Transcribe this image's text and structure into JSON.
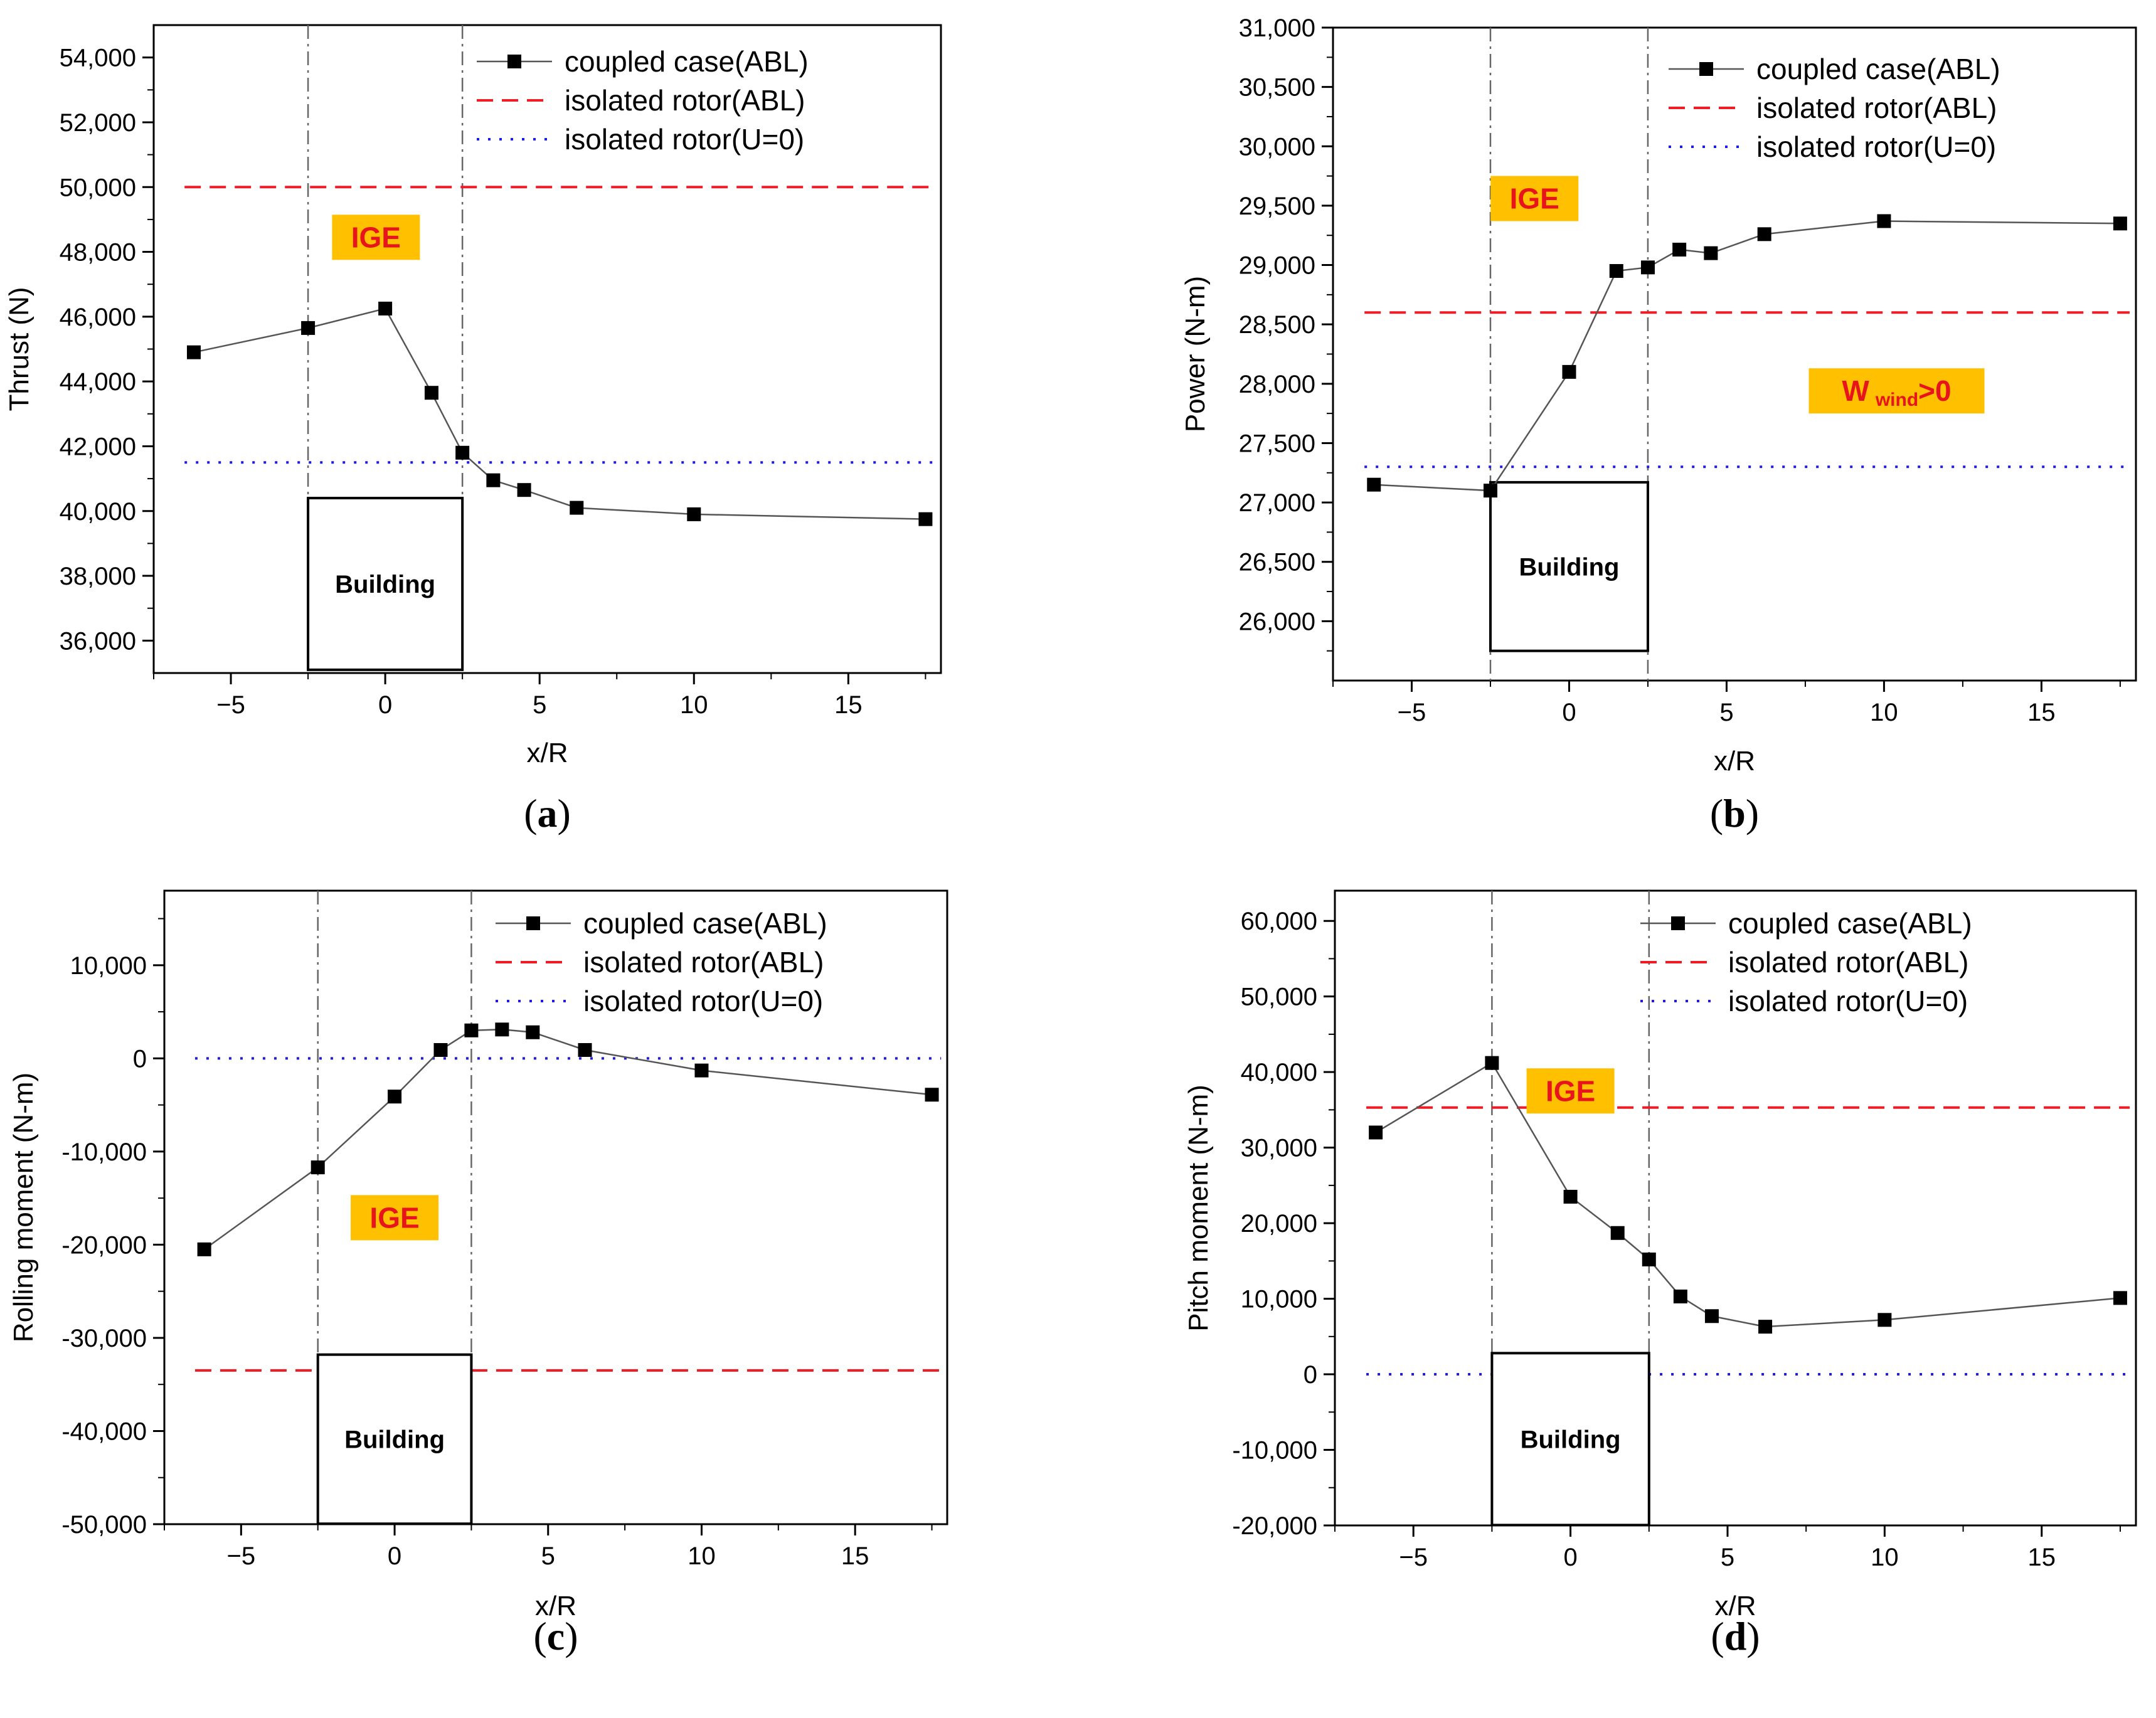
{
  "chart_data": [
    {
      "type": "line",
      "panel": "(a)",
      "panel_letter": "a",
      "xlabel": "x/R",
      "ylabel": "Thrust (N)",
      "xlim": [
        -7.5,
        18
      ],
      "ylim": [
        35000,
        55000
      ],
      "xticks": [
        -5,
        0,
        5,
        10,
        15
      ],
      "xtick_labels": [
        "−5",
        "0",
        "5",
        "10",
        "15"
      ],
      "yticks": [
        36000,
        38000,
        40000,
        42000,
        44000,
        46000,
        48000,
        50000,
        52000,
        54000
      ],
      "ytick_labels": [
        "36,000",
        "38,000",
        "40,000",
        "42,000",
        "44,000",
        "46,000",
        "48,000",
        "50,000",
        "52,000",
        "54,000"
      ],
      "series": [
        {
          "name": "coupled case(ABL)",
          "style": "line-square",
          "color": "#555555",
          "x": [
            -6.2,
            -2.5,
            0,
            1.5,
            2.5,
            3.5,
            4.5,
            6.2,
            10,
            17.5
          ],
          "y": [
            44900,
            45650,
            46250,
            43650,
            41800,
            40950,
            40650,
            40100,
            39900,
            39750
          ]
        },
        {
          "name": "isolated rotor(ABL)",
          "style": "dashed",
          "color": "#ee1c25",
          "y_const": 50000,
          "x_range": [
            -6.5,
            17.8
          ]
        },
        {
          "name": "isolated rotor(U=0)",
          "style": "dotted",
          "color": "#1c1ce6",
          "y_const": 41500,
          "x_range": [
            -6.5,
            17.8
          ]
        }
      ],
      "vlines": [
        -2.5,
        2.5
      ],
      "building": {
        "label": "Building",
        "x": [
          -2.5,
          2.5
        ],
        "y": [
          35100,
          40400
        ]
      },
      "badges": [
        {
          "text": "IGE",
          "x": -0.3,
          "y": 48450
        }
      ]
    },
    {
      "type": "line",
      "panel": "(b)",
      "panel_letter": "b",
      "xlabel": "x/R",
      "ylabel": "Power (N-m)",
      "xlim": [
        -7.5,
        18
      ],
      "ylim": [
        25500,
        31000
      ],
      "xticks": [
        -5,
        0,
        5,
        10,
        15
      ],
      "xtick_labels": [
        "−5",
        "0",
        "5",
        "10",
        "15"
      ],
      "yticks": [
        26000,
        26500,
        27000,
        27500,
        28000,
        28500,
        29000,
        29500,
        30000,
        30500,
        31000
      ],
      "ytick_labels": [
        "26,000",
        "26,500",
        "27,000",
        "27,500",
        "28,000",
        "28,500",
        "29,000",
        "29,500",
        "30,000",
        "30,500",
        "31,000"
      ],
      "series": [
        {
          "name": "coupled case(ABL)",
          "style": "line-square",
          "color": "#555555",
          "x": [
            -6.2,
            -2.5,
            0,
            1.5,
            2.5,
            3.5,
            4.5,
            6.2,
            10,
            17.5
          ],
          "y": [
            27150,
            27100,
            28100,
            28950,
            28980,
            29130,
            29100,
            29260,
            29370,
            29350
          ]
        },
        {
          "name": "isolated rotor(ABL)",
          "style": "dashed",
          "color": "#ee1c25",
          "y_const": 28600,
          "x_range": [
            -6.5,
            17.8
          ]
        },
        {
          "name": "isolated rotor(U=0)",
          "style": "dotted",
          "color": "#1c1ce6",
          "y_const": 27300,
          "x_range": [
            -6.5,
            17.8
          ]
        }
      ],
      "vlines": [
        -2.5,
        2.5
      ],
      "building": {
        "label": "Building",
        "x": [
          -2.5,
          2.5
        ],
        "y": [
          25750,
          27170
        ]
      },
      "badges": [
        {
          "text": "IGE",
          "x": -1.1,
          "y": 29560
        },
        {
          "text": "W",
          "sub": "wind",
          "tail": ">0",
          "x": 10.4,
          "y": 27940
        }
      ]
    },
    {
      "type": "line",
      "panel": "(c)",
      "panel_letter": "c",
      "xlabel": "x/R",
      "ylabel": "Rolling moment (N-m)",
      "xlim": [
        -7.5,
        18
      ],
      "ylim": [
        -50000,
        18000
      ],
      "xticks": [
        -5,
        0,
        5,
        10,
        15
      ],
      "xtick_labels": [
        "−5",
        "0",
        "5",
        "10",
        "15"
      ],
      "yticks": [
        -50000,
        -40000,
        -30000,
        -20000,
        -10000,
        0,
        10000
      ],
      "ytick_labels": [
        "-50,000",
        "-40,000",
        "-30,000",
        "-20,000",
        "-10,000",
        "0",
        "10,000"
      ],
      "series": [
        {
          "name": "coupled case(ABL)",
          "style": "line-square",
          "color": "#555555",
          "x": [
            -6.2,
            -2.5,
            0,
            1.5,
            2.5,
            3.5,
            4.5,
            6.2,
            10,
            17.5
          ],
          "y": [
            -20500,
            -11700,
            -4100,
            900,
            3000,
            3100,
            2800,
            900,
            -1300,
            -3900
          ]
        },
        {
          "name": "isolated rotor(ABL)",
          "style": "dashed",
          "color": "#ee1c25",
          "y_const": -33500,
          "x_range": [
            -6.5,
            17.8
          ]
        },
        {
          "name": "isolated rotor(U=0)",
          "style": "dotted",
          "color": "#1c1ce6",
          "y_const": 0,
          "x_range": [
            -6.5,
            17.8
          ]
        }
      ],
      "vlines": [
        -2.5,
        2.5
      ],
      "building": {
        "label": "Building",
        "x": [
          -2.5,
          2.5
        ],
        "y": [
          -49950,
          -31800
        ]
      },
      "badges": [
        {
          "text": "IGE",
          "x": 0,
          "y": -17100
        }
      ]
    },
    {
      "type": "line",
      "panel": "(d)",
      "panel_letter": "d",
      "xlabel": "x/R",
      "ylabel": "Pitch moment (N-m)",
      "xlim": [
        -7.5,
        18
      ],
      "ylim": [
        -20000,
        64000
      ],
      "xticks": [
        -5,
        0,
        5,
        10,
        15
      ],
      "xtick_labels": [
        "−5",
        "0",
        "5",
        "10",
        "15"
      ],
      "yticks": [
        -20000,
        -10000,
        0,
        10000,
        20000,
        30000,
        40000,
        50000,
        60000
      ],
      "ytick_labels": [
        "-20,000",
        "-10,000",
        "0",
        "10,000",
        "20,000",
        "30,000",
        "40,000",
        "50,000",
        "60,000"
      ],
      "series": [
        {
          "name": "coupled case(ABL)",
          "style": "line-square",
          "color": "#555555",
          "x": [
            -6.2,
            -2.5,
            0,
            1.5,
            2.5,
            3.5,
            4.5,
            6.2,
            10,
            17.5
          ],
          "y": [
            32000,
            41200,
            23500,
            18700,
            15200,
            10300,
            7700,
            6300,
            7200,
            10100
          ]
        },
        {
          "name": "isolated rotor(ABL)",
          "style": "dashed",
          "color": "#ee1c25",
          "y_const": 35300,
          "x_range": [
            -6.5,
            17.8
          ]
        },
        {
          "name": "isolated rotor(U=0)",
          "style": "dotted",
          "color": "#1c1ce6",
          "y_const": 0,
          "x_range": [
            -6.5,
            17.8
          ]
        }
      ],
      "vlines": [
        -2.5,
        2.5
      ],
      "building": {
        "label": "Building",
        "x": [
          -2.5,
          2.5
        ],
        "y": [
          -19950,
          2800
        ]
      },
      "badges": [
        {
          "text": "IGE",
          "x": 0,
          "y": 37500
        }
      ]
    }
  ]
}
